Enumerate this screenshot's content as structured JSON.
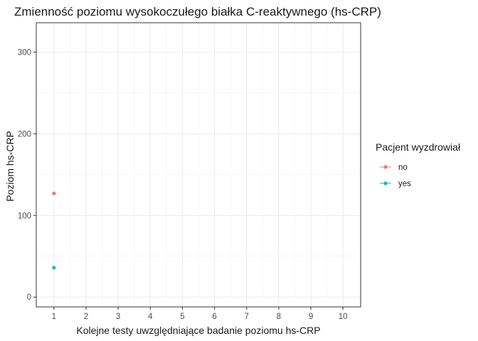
{
  "chart_data": {
    "type": "line",
    "title": "Zmienność poziomu wysokoczułego białka C-reaktywnego (hs-CRP)",
    "xlabel": "Kolejne testy uwzględniające badanie poziomu hs-CRP",
    "ylabel": "Poziom hs-CRP",
    "xlim": [
      0.45,
      10.55
    ],
    "ylim": [
      -12,
      336
    ],
    "x_ticks": [
      "1",
      "2",
      "3",
      "4",
      "5",
      "6",
      "7",
      "8",
      "9",
      "10"
    ],
    "y_ticks": [
      "0",
      "100",
      "200",
      "300"
    ],
    "grid": true,
    "legend": {
      "title": "Pacjent wyzdrowiał",
      "position": "right"
    },
    "series": [
      {
        "name": "no",
        "color": "#F8766D",
        "x": [
          1
        ],
        "y": [
          127
        ]
      },
      {
        "name": "yes",
        "color": "#00BFC4",
        "x": [
          1
        ],
        "y": [
          36
        ]
      }
    ]
  }
}
